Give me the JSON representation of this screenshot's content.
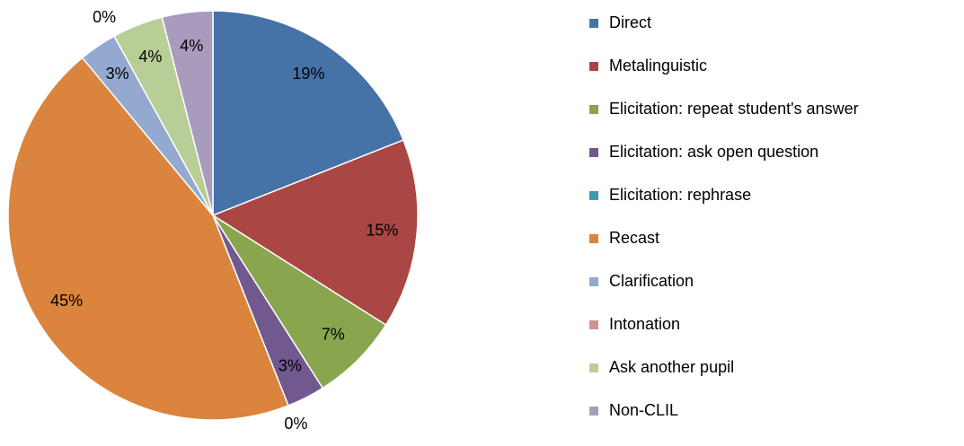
{
  "chart_data": {
    "type": "pie",
    "categories": [
      "Direct",
      "Metalinguistic",
      "Elicitation: repeat student's answer",
      "Elicitation: ask open question",
      "Elicitation: rephrase",
      "Recast",
      "Clarification",
      "Intonation",
      "Ask another pupil",
      "Non-CLIL"
    ],
    "values": [
      19,
      15,
      7,
      3,
      0,
      45,
      3,
      0,
      4,
      4
    ],
    "value_labels": [
      "19%",
      "15%",
      "7%",
      "3%",
      "0%",
      "45%",
      "3%",
      "0%",
      "4%",
      "4%"
    ],
    "colors": [
      "#4572a7",
      "#aa4643",
      "#89a54e",
      "#71588f",
      "#4198af",
      "#db843d",
      "#93a9cf",
      "#d19392",
      "#b9cd96",
      "#a99bbd"
    ],
    "legend": "right"
  }
}
